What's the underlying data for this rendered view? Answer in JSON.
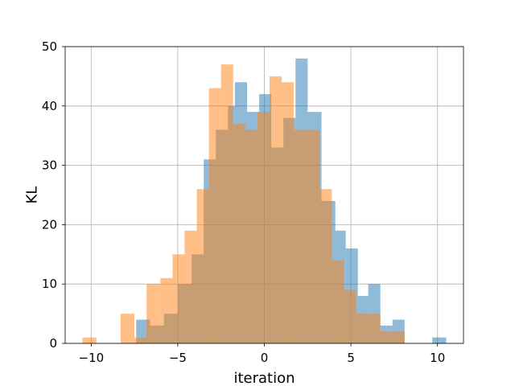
{
  "chart_data": {
    "type": "bar",
    "subtype": "histogram",
    "xlabel": "iteration",
    "ylabel": "KL",
    "xlim": [
      -11.5,
      11.5
    ],
    "ylim": [
      0,
      50
    ],
    "xticks": [
      -10,
      -5,
      0,
      5,
      10
    ],
    "xtick_labels": [
      "−10",
      "−5",
      "0",
      "5",
      "10"
    ],
    "yticks": [
      0,
      10,
      20,
      30,
      40,
      50
    ],
    "ytick_labels": [
      "0",
      "10",
      "20",
      "30",
      "40",
      "50"
    ],
    "grid": true,
    "legend": "none",
    "series": [
      {
        "color": "#1f77b4",
        "alpha": 0.5,
        "bins": [
          {
            "x0": -7.4,
            "x1": -6.6,
            "value": 4
          },
          {
            "x0": -6.6,
            "x1": -5.8,
            "value": 3
          },
          {
            "x0": -5.8,
            "x1": -5.0,
            "value": 5
          },
          {
            "x0": -5.0,
            "x1": -4.2,
            "value": 10
          },
          {
            "x0": -4.2,
            "x1": -3.5,
            "value": 15
          },
          {
            "x0": -3.5,
            "x1": -2.8,
            "value": 31
          },
          {
            "x0": -2.8,
            "x1": -2.1,
            "value": 36
          },
          {
            "x0": -2.1,
            "x1": -1.7,
            "value": 40
          },
          {
            "x0": -1.7,
            "x1": -1.0,
            "value": 44
          },
          {
            "x0": -1.0,
            "x1": -0.3,
            "value": 39
          },
          {
            "x0": -0.3,
            "x1": 0.4,
            "value": 42
          },
          {
            "x0": 0.4,
            "x1": 1.1,
            "value": 33
          },
          {
            "x0": 1.1,
            "x1": 1.8,
            "value": 38
          },
          {
            "x0": 1.8,
            "x1": 2.5,
            "value": 48
          },
          {
            "x0": 2.5,
            "x1": 3.3,
            "value": 39
          },
          {
            "x0": 3.3,
            "x1": 4.1,
            "value": 24
          },
          {
            "x0": 4.1,
            "x1": 4.7,
            "value": 19
          },
          {
            "x0": 4.7,
            "x1": 5.4,
            "value": 16
          },
          {
            "x0": 5.4,
            "x1": 6.0,
            "value": 8
          },
          {
            "x0": 6.0,
            "x1": 6.7,
            "value": 10
          },
          {
            "x0": 6.7,
            "x1": 7.4,
            "value": 3
          },
          {
            "x0": 7.4,
            "x1": 8.1,
            "value": 4
          },
          {
            "x0": 9.7,
            "x1": 10.5,
            "value": 1
          }
        ]
      },
      {
        "color": "#ff7f0e",
        "alpha": 0.5,
        "bins": [
          {
            "x0": -10.5,
            "x1": -9.7,
            "value": 1
          },
          {
            "x0": -8.3,
            "x1": -7.5,
            "value": 5
          },
          {
            "x0": -7.5,
            "x1": -6.8,
            "value": 1
          },
          {
            "x0": -6.8,
            "x1": -6.0,
            "value": 10
          },
          {
            "x0": -6.0,
            "x1": -5.3,
            "value": 11
          },
          {
            "x0": -5.3,
            "x1": -4.6,
            "value": 15
          },
          {
            "x0": -4.6,
            "x1": -3.9,
            "value": 19
          },
          {
            "x0": -3.9,
            "x1": -3.2,
            "value": 26
          },
          {
            "x0": -3.2,
            "x1": -2.5,
            "value": 43
          },
          {
            "x0": -2.5,
            "x1": -1.8,
            "value": 47
          },
          {
            "x0": -1.8,
            "x1": -1.1,
            "value": 37
          },
          {
            "x0": -1.1,
            "x1": -0.4,
            "value": 36
          },
          {
            "x0": -0.4,
            "x1": 0.3,
            "value": 39
          },
          {
            "x0": 0.3,
            "x1": 1.0,
            "value": 45
          },
          {
            "x0": 1.0,
            "x1": 1.7,
            "value": 44
          },
          {
            "x0": 1.7,
            "x1": 2.4,
            "value": 36
          },
          {
            "x0": 2.4,
            "x1": 3.2,
            "value": 36
          },
          {
            "x0": 3.2,
            "x1": 3.9,
            "value": 26
          },
          {
            "x0": 3.9,
            "x1": 4.6,
            "value": 14
          },
          {
            "x0": 4.6,
            "x1": 5.3,
            "value": 9
          },
          {
            "x0": 5.3,
            "x1": 6.0,
            "value": 5
          },
          {
            "x0": 6.0,
            "x1": 6.7,
            "value": 5
          },
          {
            "x0": 6.7,
            "x1": 7.4,
            "value": 2
          },
          {
            "x0": 7.4,
            "x1": 8.1,
            "value": 2
          }
        ]
      }
    ]
  }
}
